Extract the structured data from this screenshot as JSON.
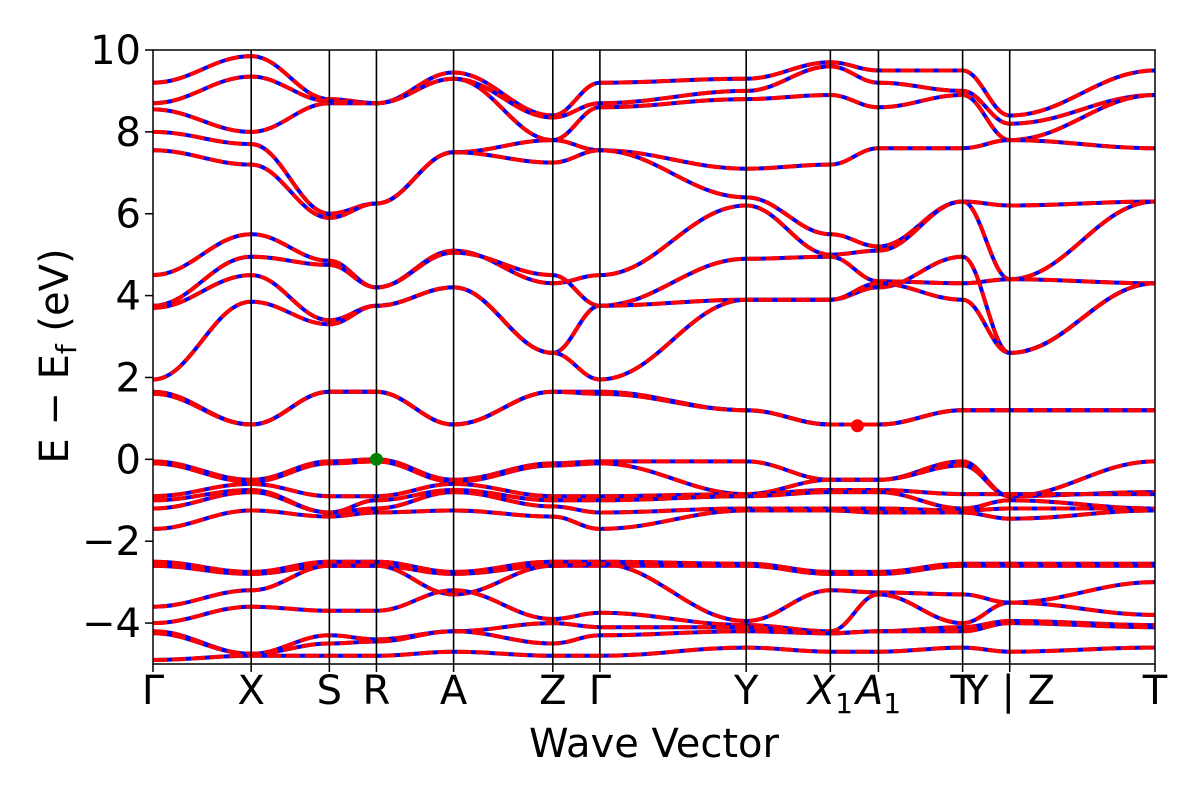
{
  "chart_data": {
    "type": "line",
    "title": "",
    "xlabel": "Wave Vector",
    "ylabel": "E − E",
    "ylabel_sub": "f",
    "ylabel_unit": " (eV)",
    "ylim": [
      -5,
      10
    ],
    "yticks": [
      -4,
      -2,
      0,
      2,
      4,
      6,
      8,
      10
    ],
    "ytick_labels": [
      "−4",
      "−2",
      "0",
      "2",
      "4",
      "6",
      "8",
      "10"
    ],
    "grid": false,
    "legend": "none",
    "x_range": [
      0,
      1000
    ],
    "kpoints": [
      {
        "x": 0,
        "label": "Γ",
        "sub": ""
      },
      {
        "x": 98,
        "label": "X",
        "sub": ""
      },
      {
        "x": 176,
        "label": "S",
        "sub": ""
      },
      {
        "x": 223,
        "label": "R",
        "sub": ""
      },
      {
        "x": 300,
        "label": "A",
        "sub": ""
      },
      {
        "x": 399,
        "label": "Z",
        "sub": ""
      },
      {
        "x": 446,
        "label": "Γ",
        "sub": ""
      },
      {
        "x": 592,
        "label": "Y",
        "sub": ""
      },
      {
        "x": 676,
        "label": "X",
        "sub": "1"
      },
      {
        "x": 724,
        "label": "A",
        "sub": "1"
      },
      {
        "x": 808,
        "label": "T",
        "sub": ""
      },
      {
        "x": 855,
        "label": "Y | Z",
        "sub": ""
      },
      {
        "x": 1000,
        "label": "T",
        "sub": ""
      }
    ],
    "colors": {
      "band_solid": "#0000ff",
      "band_dashed": "#ff0000",
      "vbm_marker": "#008000",
      "cbm_marker": "#ff0000"
    },
    "markers": [
      {
        "name": "VBM",
        "x": 223,
        "y": 0.0,
        "color": "#008000"
      },
      {
        "name": "CBM",
        "x": 703,
        "y": 0.82,
        "color": "#ff0000"
      }
    ],
    "series": [
      {
        "x": [
          0,
          98,
          176,
          223,
          300,
          399,
          446,
          592,
          676,
          724,
          808,
          855,
          1000
        ],
        "y": [
          9.2,
          9.85,
          8.8,
          8.7,
          9.45,
          8.4,
          9.2,
          9.3,
          9.7,
          9.5,
          9.5,
          8.4,
          9.5
        ]
      },
      {
        "x": [
          0,
          98,
          176,
          223,
          300,
          399,
          446,
          592,
          676,
          724,
          808,
          855,
          1000
        ],
        "y": [
          8.7,
          9.35,
          8.75,
          8.7,
          9.3,
          8.35,
          8.7,
          9.0,
          9.6,
          9.2,
          9.0,
          8.2,
          8.9
        ]
      },
      {
        "x": [
          0,
          98,
          176,
          223,
          300,
          399,
          446,
          592,
          676,
          724,
          808,
          855,
          1000
        ],
        "y": [
          8.55,
          8.0,
          8.7,
          8.7,
          9.3,
          7.8,
          8.6,
          8.8,
          8.9,
          8.6,
          8.9,
          7.8,
          8.9
        ]
      },
      {
        "x": [
          0,
          98,
          176,
          223,
          300,
          399,
          446,
          592,
          676,
          724,
          808,
          855,
          1000
        ],
        "y": [
          8.0,
          7.7,
          6.0,
          6.25,
          7.5,
          7.8,
          7.55,
          7.1,
          7.2,
          7.6,
          7.6,
          7.8,
          7.6
        ]
      },
      {
        "x": [
          0,
          98,
          176,
          223,
          300,
          399,
          446,
          592,
          676,
          724,
          808,
          855,
          1000
        ],
        "y": [
          7.55,
          7.2,
          5.9,
          6.25,
          7.5,
          7.25,
          7.55,
          6.4,
          5.5,
          5.2,
          6.3,
          6.2,
          6.3
        ]
      },
      {
        "x": [
          0,
          98,
          176,
          223,
          300,
          399,
          446,
          592,
          676,
          724,
          808,
          855,
          1000
        ],
        "y": [
          4.5,
          5.5,
          4.85,
          4.2,
          5.1,
          4.3,
          4.5,
          6.2,
          5.0,
          5.1,
          6.3,
          4.4,
          6.3
        ]
      },
      {
        "x": [
          0,
          98,
          176,
          223,
          300,
          399,
          446,
          592,
          676,
          724,
          808,
          855,
          1000
        ],
        "y": [
          3.75,
          4.95,
          4.75,
          4.2,
          5.05,
          4.5,
          3.75,
          4.9,
          4.95,
          4.35,
          4.3,
          4.4,
          4.3
        ]
      },
      {
        "x": [
          0,
          98,
          176,
          223,
          300,
          399,
          446,
          592,
          676,
          724,
          808,
          855,
          1000
        ],
        "y": [
          3.7,
          4.5,
          3.4,
          3.75,
          4.2,
          2.6,
          3.75,
          3.9,
          3.9,
          4.2,
          4.95,
          2.6,
          4.3
        ]
      },
      {
        "x": [
          0,
          98,
          176,
          223,
          300,
          399,
          446,
          592,
          676,
          724,
          808,
          855,
          1000
        ],
        "y": [
          1.95,
          3.85,
          3.3,
          3.75,
          4.2,
          2.6,
          1.95,
          3.9,
          3.9,
          4.3,
          3.9,
          2.6,
          4.3
        ]
      },
      {
        "x": [
          0,
          98,
          176,
          223,
          300,
          399,
          446,
          592,
          676,
          724,
          808,
          855,
          1000
        ],
        "y": [
          1.65,
          0.85,
          1.65,
          1.65,
          0.85,
          1.65,
          1.65,
          1.2,
          0.85,
          0.85,
          1.2,
          1.2,
          1.2
        ]
      },
      {
        "x": [
          0,
          98,
          176,
          223,
          300,
          399,
          446,
          592,
          676,
          724,
          808,
          855,
          1000
        ],
        "y": [
          1.6,
          0.85,
          1.65,
          1.65,
          0.85,
          1.65,
          1.6,
          1.2,
          0.85,
          0.85,
          1.2,
          1.2,
          1.2
        ]
      },
      {
        "x": [
          0,
          98,
          176,
          223,
          300,
          399,
          446,
          592,
          676,
          724,
          808,
          855,
          1000
        ],
        "y": [
          -0.05,
          -0.5,
          -0.05,
          0.0,
          -0.5,
          -0.1,
          -0.05,
          -0.05,
          -0.5,
          -0.5,
          -0.05,
          -0.9,
          -0.05
        ]
      },
      {
        "x": [
          0,
          98,
          176,
          223,
          300,
          399,
          446,
          592,
          676,
          724,
          808,
          855,
          1000
        ],
        "y": [
          -0.1,
          -0.55,
          -0.1,
          -0.05,
          -0.55,
          -0.15,
          -0.1,
          -0.85,
          -0.5,
          -0.5,
          -0.15,
          -0.9,
          -0.8
        ]
      },
      {
        "x": [
          0,
          98,
          176,
          223,
          300,
          399,
          446,
          592,
          676,
          724,
          808,
          855,
          1000
        ],
        "y": [
          -0.9,
          -0.6,
          -0.9,
          -0.9,
          -0.6,
          -0.9,
          -0.9,
          -0.85,
          -0.75,
          -0.75,
          -0.85,
          -0.85,
          -0.85
        ]
      },
      {
        "x": [
          0,
          98,
          176,
          223,
          300,
          399,
          446,
          592,
          676,
          724,
          808,
          855,
          1000
        ],
        "y": [
          -1.0,
          -0.75,
          -1.3,
          -1.0,
          -0.75,
          -1.0,
          -1.0,
          -0.9,
          -0.8,
          -0.8,
          -1.2,
          -1.0,
          -1.2
        ]
      },
      {
        "x": [
          0,
          98,
          176,
          223,
          300,
          399,
          446,
          592,
          676,
          724,
          808,
          855,
          1000
        ],
        "y": [
          -1.2,
          -0.8,
          -1.3,
          -1.2,
          -0.8,
          -1.15,
          -1.3,
          -1.2,
          -1.2,
          -1.2,
          -1.25,
          -1.2,
          -1.2
        ]
      },
      {
        "x": [
          0,
          98,
          176,
          223,
          300,
          399,
          446,
          592,
          676,
          724,
          808,
          855,
          1000
        ],
        "y": [
          -1.7,
          -1.25,
          -1.4,
          -1.3,
          -1.25,
          -1.4,
          -1.7,
          -1.25,
          -1.25,
          -1.3,
          -1.3,
          -1.45,
          -1.25
        ]
      },
      {
        "x": [
          0,
          98,
          176,
          223,
          300,
          399,
          446,
          592,
          676,
          724,
          808,
          855,
          1000
        ],
        "y": [
          -2.5,
          -2.75,
          -2.5,
          -2.5,
          -2.75,
          -2.5,
          -2.5,
          -2.55,
          -2.75,
          -2.75,
          -2.55,
          -2.55,
          -2.55
        ]
      },
      {
        "x": [
          0,
          98,
          176,
          223,
          300,
          399,
          446,
          592,
          676,
          724,
          808,
          855,
          1000
        ],
        "y": [
          -2.6,
          -2.8,
          -2.6,
          -2.6,
          -2.8,
          -2.6,
          -2.6,
          -2.6,
          -2.8,
          -2.8,
          -2.6,
          -2.6,
          -2.6
        ]
      },
      {
        "x": [
          0,
          98,
          176,
          223,
          300,
          399,
          446,
          592,
          676,
          724,
          808,
          855,
          1000
        ],
        "y": [
          -3.6,
          -3.2,
          -2.6,
          -2.6,
          -3.3,
          -2.6,
          -2.55,
          -3.95,
          -3.2,
          -3.25,
          -3.3,
          -3.5,
          -3.0
        ]
      },
      {
        "x": [
          0,
          98,
          176,
          223,
          300,
          399,
          446,
          592,
          676,
          724,
          808,
          855,
          1000
        ],
        "y": [
          -4.0,
          -3.6,
          -3.7,
          -3.7,
          -3.2,
          -3.9,
          -3.75,
          -4.05,
          -4.2,
          -3.3,
          -4.0,
          -3.5,
          -3.8
        ]
      },
      {
        "x": [
          0,
          98,
          176,
          223,
          300,
          399,
          446,
          592,
          676,
          724,
          808,
          855,
          1000
        ],
        "y": [
          -4.2,
          -4.75,
          -4.3,
          -4.4,
          -4.2,
          -4.0,
          -4.1,
          -4.1,
          -4.25,
          -4.2,
          -4.1,
          -3.95,
          -4.05
        ]
      },
      {
        "x": [
          0,
          98,
          176,
          223,
          300,
          399,
          446,
          592,
          676,
          724,
          808,
          855,
          1000
        ],
        "y": [
          -4.25,
          -4.75,
          -4.5,
          -4.45,
          -4.2,
          -4.5,
          -4.3,
          -4.2,
          -4.25,
          -4.2,
          -4.2,
          -4.0,
          -4.1
        ]
      },
      {
        "x": [
          0,
          98,
          176,
          223,
          300,
          399,
          446,
          592,
          676,
          724,
          808,
          855,
          1000
        ],
        "y": [
          -4.9,
          -4.8,
          -4.8,
          -4.8,
          -4.7,
          -4.8,
          -4.8,
          -4.6,
          -4.7,
          -4.7,
          -4.6,
          -4.7,
          -4.6
        ]
      }
    ]
  }
}
